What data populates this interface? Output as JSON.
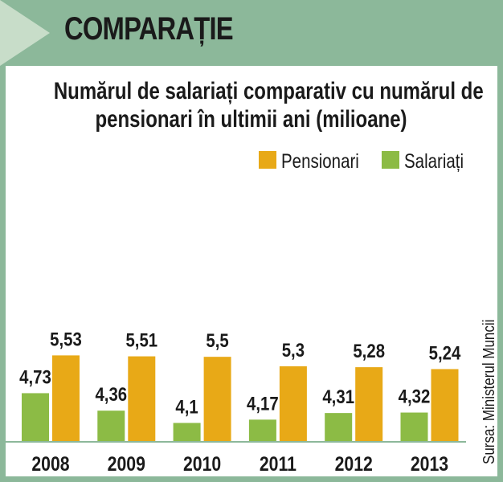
{
  "header": {
    "title": "COMPARAȚIE"
  },
  "chart_title_line1": "Numărul de salariați comparativ cu numărul de",
  "chart_title_line2": "pensionari în ultimii ani (milioane)",
  "source": "Sursa: Ministerul Muncii",
  "colors": {
    "pensionari": "#e8a917",
    "salariati": "#8cbb45",
    "header": "#8cb89a"
  },
  "chart_data": {
    "type": "bar",
    "title": "Numărul de salariați comparativ cu numărul de pensionari în ultimii ani (milioane)",
    "categories": [
      "2008",
      "2009",
      "2010",
      "2011",
      "2012",
      "2013"
    ],
    "series": [
      {
        "name": "Salariați",
        "values": [
          4.73,
          4.36,
          4.1,
          4.17,
          4.31,
          4.32
        ],
        "labels": [
          "4,73",
          "4,36",
          "4,1",
          "4,17",
          "4,31",
          "4,32"
        ]
      },
      {
        "name": "Pensionari",
        "values": [
          5.53,
          5.51,
          5.5,
          5.3,
          5.28,
          5.24
        ],
        "labels": [
          "5,53",
          "5,51",
          "5,5",
          "5,3",
          "5,28",
          "5,24"
        ]
      }
    ],
    "legend": {
      "position": "top-right",
      "order": [
        "Pensionari",
        "Salariați"
      ]
    },
    "grid": false
  }
}
